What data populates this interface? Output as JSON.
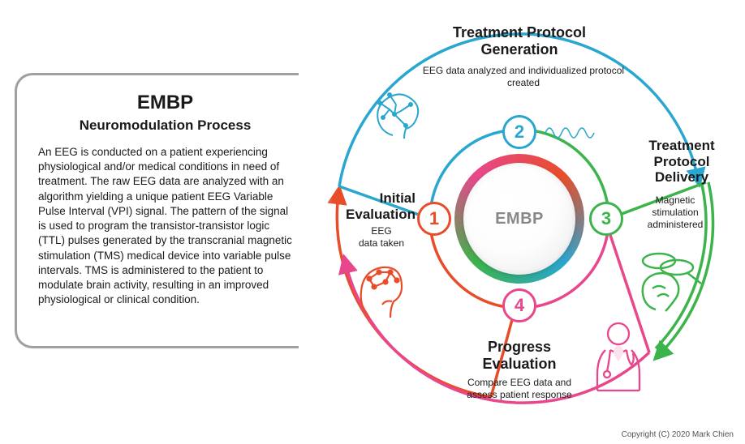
{
  "panel": {
    "title": "EMBP",
    "subtitle": "Neuromodulation Process",
    "body": "An EEG is conducted on a patient experiencing physiological and/or medical conditions in need of treatment. The raw EEG data are analyzed with an algorithm yielding a unique patient EEG Variable Pulse Interval (VPI) signal. The pattern of the signal is used to program the transistor-transistor logic (TTL) pulses generated by the transcranial magnetic stimulation (TMS) medical device into variable pulse intervals. TMS is administered to the patient to modulate brain activity, resulting in an improved physiological or clinical condition."
  },
  "center": {
    "label": "EMBP"
  },
  "segments": [
    {
      "num": "1",
      "title": "Initial\nEvaluation",
      "desc": "EEG\ndata taken",
      "color": "#e84d2a",
      "title_fontsize": 17,
      "icon": "eeg-cap-icon"
    },
    {
      "num": "2",
      "title": "Treatment Protocol\nGeneration",
      "desc": "EEG data analyzed and individualized protocol created",
      "color": "#2aa7d0",
      "title_fontsize": 18,
      "icon": "ai-brain-icon"
    },
    {
      "num": "3",
      "title": "Treatment\nProtocol\nDelivery",
      "desc": "Magnetic\nstimulation\nadministered",
      "color": "#3cb44b",
      "title_fontsize": 17,
      "icon": "tms-coil-icon"
    },
    {
      "num": "4",
      "title": "Progress\nEvaluation",
      "desc": "Compare EEG data and\nassess patient response",
      "color": "#e8478d",
      "title_fontsize": 18,
      "icon": "doctor-icon"
    }
  ],
  "diagram_style": {
    "type": "circular-process",
    "background_color": "#ffffff",
    "center_hub_bg": "#f2f2f2",
    "center_label_color": "#888888",
    "ring_gradient": [
      "#e8478d",
      "#e84d2a",
      "#2aa7d0",
      "#3cb44b"
    ],
    "arc_stroke_width": 3.5,
    "badge_diameter": 42,
    "badge_border_width": 3,
    "hub_diameter": 138,
    "ring_diameter": 160,
    "panel_border_color": "#a0a0a0",
    "panel_border_radius": 22,
    "title_color": "#1a1a1a",
    "desc_fontsize": 12,
    "fade_edge": true
  },
  "copyright": "Copyright (C) 2020 Mark Chien"
}
